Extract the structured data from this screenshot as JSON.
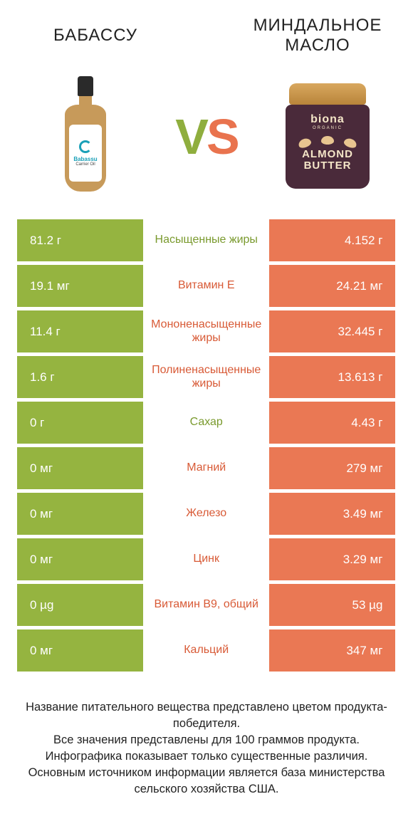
{
  "header": {
    "left_title": "БАБАССУ",
    "right_title": "МИНДАЛЬНОЕ МАСЛО"
  },
  "vs": {
    "v": "V",
    "s": "S"
  },
  "bottle": {
    "name": "Babassu",
    "sub": "Carrier Oil"
  },
  "jar": {
    "brand": "biona",
    "sub": "ORGANIC",
    "product1": "ALMOND",
    "product2": "BUTTER"
  },
  "colors": {
    "green": "#95b440",
    "orange": "#ea7854",
    "mid_green": "#7a9a2e",
    "mid_orange": "#d85a36",
    "background": "#ffffff"
  },
  "rows": [
    {
      "left": "81.2 г",
      "mid": "Насыщенные жиры",
      "right": "4.152 г",
      "winner": "left"
    },
    {
      "left": "19.1 мг",
      "mid": "Витамин E",
      "right": "24.21 мг",
      "winner": "right"
    },
    {
      "left": "11.4 г",
      "mid": "Мононенасыщенные жиры",
      "right": "32.445 г",
      "winner": "right"
    },
    {
      "left": "1.6 г",
      "mid": "Полиненасыщенные жиры",
      "right": "13.613 г",
      "winner": "right"
    },
    {
      "left": "0 г",
      "mid": "Сахар",
      "right": "4.43 г",
      "winner": "left"
    },
    {
      "left": "0 мг",
      "mid": "Магний",
      "right": "279 мг",
      "winner": "right"
    },
    {
      "left": "0 мг",
      "mid": "Железо",
      "right": "3.49 мг",
      "winner": "right"
    },
    {
      "left": "0 мг",
      "mid": "Цинк",
      "right": "3.29 мг",
      "winner": "right"
    },
    {
      "left": "0 µg",
      "mid": "Витамин B9, общий",
      "right": "53 µg",
      "winner": "right"
    },
    {
      "left": "0 мг",
      "mid": "Кальций",
      "right": "347 мг",
      "winner": "right"
    }
  ],
  "footer": {
    "line1": "Название питательного вещества представлено цветом продукта-победителя.",
    "line2": "Все значения представлены для 100 граммов продукта.",
    "line3": "Инфографика показывает только существенные различия.",
    "line4": "Основным источником информации является база министерства сельского хозяйства США."
  }
}
